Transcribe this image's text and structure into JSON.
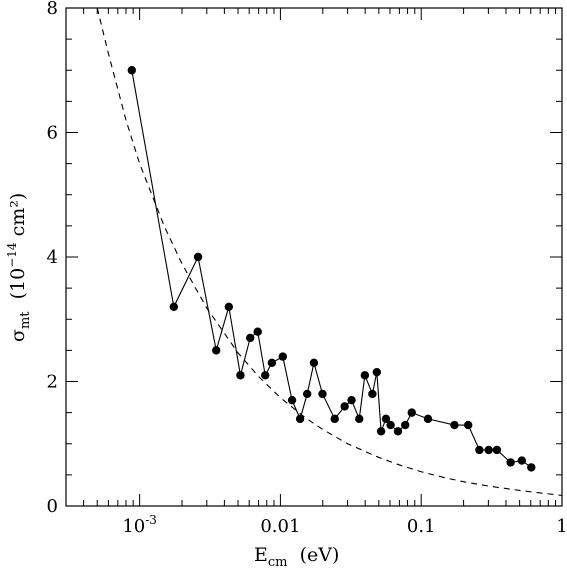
{
  "chart_data": {
    "type": "line",
    "xscale": "log",
    "xlim": [
      0.0003,
      1
    ],
    "ylim": [
      0,
      8
    ],
    "x_tick_labels": [
      {
        "value": 0.001,
        "label": "10",
        "sup": "-3"
      },
      {
        "value": 0.01,
        "label": "0.01"
      },
      {
        "value": 0.1,
        "label": "0.1"
      },
      {
        "value": 1,
        "label": "1"
      }
    ],
    "y_tick_labels": [
      {
        "value": 0,
        "label": "0"
      },
      {
        "value": 2,
        "label": "2"
      },
      {
        "value": 4,
        "label": "4"
      },
      {
        "value": 6,
        "label": "6"
      },
      {
        "value": 8,
        "label": "8"
      }
    ],
    "xlabel": {
      "main": "E",
      "sub": "cm",
      "rest": "  (eV)"
    },
    "ylabel": {
      "main": "σ",
      "sub": "mt",
      "pre": "  (10",
      "sup": "−14",
      "post": " cm²)"
    },
    "grid": false,
    "series": [
      {
        "style": "solid-with-markers",
        "x": [
          0.00088,
          0.00175,
          0.0026,
          0.0035,
          0.0043,
          0.0052,
          0.0061,
          0.0069,
          0.0078,
          0.0087,
          0.0104,
          0.0121,
          0.0138,
          0.0155,
          0.0173,
          0.0199,
          0.0243,
          0.0286,
          0.032,
          0.0363,
          0.0398,
          0.045,
          0.0484,
          0.0519,
          0.0562,
          0.0606,
          0.0684,
          0.077,
          0.0857,
          0.1117,
          0.1723,
          0.2157,
          0.259,
          0.3017,
          0.345,
          0.4317,
          0.5184,
          0.6051
        ],
        "y": [
          7.0,
          3.2,
          4.0,
          2.5,
          3.2,
          2.1,
          2.7,
          2.8,
          2.1,
          2.3,
          2.4,
          1.7,
          1.4,
          1.8,
          2.3,
          1.8,
          1.4,
          1.6,
          1.7,
          1.4,
          2.1,
          1.8,
          2.15,
          1.2,
          1.4,
          1.3,
          1.2,
          1.3,
          1.5,
          1.4,
          1.3,
          1.3,
          0.9,
          0.9,
          0.9,
          0.7,
          0.73,
          0.62
        ]
      },
      {
        "style": "dashed",
        "x": [
          0.0005,
          0.0006,
          0.0008,
          0.001,
          0.0015,
          0.002,
          0.003,
          0.005,
          0.007,
          0.01,
          0.015,
          0.02,
          0.03,
          0.05,
          0.07,
          0.1,
          0.15,
          0.2,
          0.3,
          0.5,
          0.7,
          1.0
        ],
        "y": [
          8.0,
          7.27,
          6.2,
          5.5,
          4.49,
          3.89,
          3.18,
          2.46,
          2.08,
          1.74,
          1.42,
          1.23,
          1.0,
          0.78,
          0.66,
          0.55,
          0.45,
          0.39,
          0.32,
          0.25,
          0.21,
          0.17
        ]
      }
    ]
  }
}
